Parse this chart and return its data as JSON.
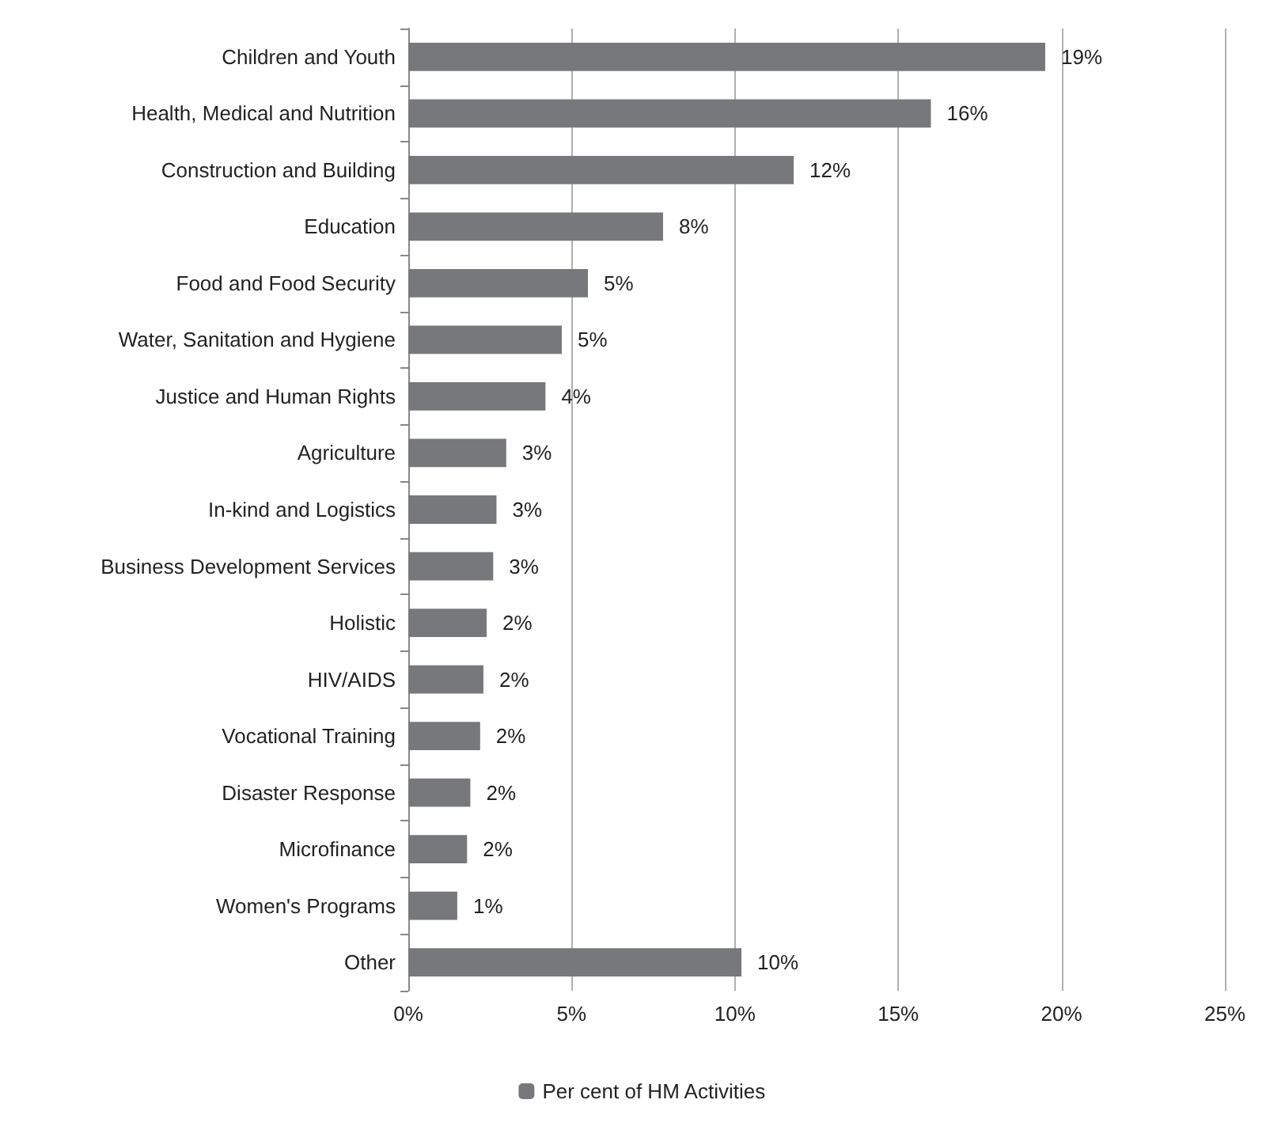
{
  "chart_data": {
    "type": "bar",
    "orientation": "horizontal",
    "categories": [
      "Children and Youth",
      "Health, Medical and Nutrition",
      "Construction and Building",
      "Education",
      "Food and Food Security",
      "Water, Sanitation and Hygiene",
      "Justice and Human Rights",
      "Agriculture",
      "In-kind and Logistics",
      "Business Development Services",
      "Holistic",
      "HIV/AIDS",
      "Vocational Training",
      "Disaster Response",
      "Microfinance",
      "Women's Programs",
      "Other"
    ],
    "series": [
      {
        "name": "Per cent of HM Activities",
        "color": "#77787b",
        "values": [
          19.5,
          16,
          11.8,
          7.8,
          5.5,
          4.7,
          4.2,
          3,
          2.7,
          2.6,
          2.4,
          2.3,
          2.2,
          1.9,
          1.8,
          1.5,
          10.2
        ],
        "value_labels": [
          "19%",
          "16%",
          "12%",
          "8%",
          "5%",
          "5%",
          "4%",
          "3%",
          "3%",
          "3%",
          "2%",
          "2%",
          "2%",
          "2%",
          "2%",
          "1%",
          "10%"
        ]
      }
    ],
    "xlim": [
      0,
      25
    ],
    "xticks": [
      {
        "value": 0,
        "label": "0%"
      },
      {
        "value": 5,
        "label": "5%"
      },
      {
        "value": 10,
        "label": "10%"
      },
      {
        "value": 15,
        "label": "15%"
      },
      {
        "value": 20,
        "label": "20%"
      },
      {
        "value": 25,
        "label": "25%"
      }
    ],
    "grid": "x",
    "legend": "bottom"
  }
}
